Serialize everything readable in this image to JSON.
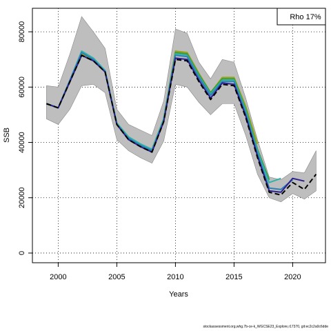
{
  "chart_data": {
    "type": "line",
    "title": "",
    "xlabel": "Years",
    "ylabel": "SSB",
    "xlim": [
      1997.8,
      2022.8
    ],
    "ylim": [
      -3500,
      88500
    ],
    "x_ticks": [
      2000,
      2005,
      2010,
      2015,
      2020
    ],
    "y_ticks": [
      0,
      20000,
      40000,
      60000,
      80000
    ],
    "grid": "dotted",
    "legend": {
      "position": "top-right",
      "text": "Rho 17%"
    },
    "confidence_band": {
      "x": [
        1999,
        2000,
        2001,
        2002,
        2003,
        2004,
        2005,
        2006,
        2007,
        2008,
        2009,
        2010,
        2011,
        2012,
        2013,
        2014,
        2015,
        2016,
        2017,
        2018,
        2019,
        2020,
        2021,
        2022
      ],
      "lower": [
        48500,
        46500,
        52000,
        60500,
        61000,
        58000,
        41000,
        37000,
        34500,
        32500,
        40500,
        61000,
        60000,
        54500,
        50000,
        54000,
        54000,
        42500,
        28500,
        20000,
        18500,
        21500,
        19500,
        22500
      ],
      "upper": [
        60500,
        60000,
        72000,
        85500,
        80000,
        74000,
        52000,
        46500,
        44500,
        42500,
        55000,
        81000,
        79500,
        69000,
        63000,
        70000,
        69000,
        56000,
        41000,
        27500,
        26500,
        29500,
        29000,
        37000
      ]
    },
    "series": [
      {
        "color": "#000000",
        "dashed": true,
        "x": [
          1999,
          2000,
          2001,
          2002,
          2003,
          2004,
          2005,
          2006,
          2007,
          2008,
          2009,
          2010,
          2011,
          2012,
          2013,
          2014,
          2015,
          2016,
          2017,
          2018,
          2019,
          2020,
          2021,
          2022
        ],
        "values": [
          54000,
          52500,
          62000,
          71500,
          69500,
          65500,
          46500,
          41000,
          38500,
          36500,
          47500,
          70000,
          69500,
          62000,
          55500,
          61000,
          60500,
          49000,
          34500,
          22000,
          21000,
          25500,
          23000,
          28500
        ]
      },
      {
        "color": "#2c1f8e",
        "dashed": false,
        "x": [
          1999,
          2000,
          2001,
          2002,
          2003,
          2004,
          2005,
          2006,
          2007,
          2008,
          2009,
          2010,
          2011,
          2012,
          2013,
          2014,
          2015,
          2016,
          2017,
          2018,
          2019,
          2020,
          2021
        ],
        "values": [
          54000,
          52500,
          62000,
          71500,
          69500,
          65500,
          46500,
          41000,
          38500,
          36500,
          47500,
          70500,
          70000,
          62500,
          56000,
          61500,
          61000,
          49500,
          35000,
          22500,
          22000,
          27000,
          26000
        ]
      },
      {
        "color": "#2f7fb8",
        "dashed": false,
        "x": [
          1999,
          2000,
          2001,
          2002,
          2003,
          2004,
          2005,
          2006,
          2007,
          2008,
          2009,
          2010,
          2011,
          2012,
          2013,
          2014,
          2015,
          2016,
          2017,
          2018,
          2019,
          2020
        ],
        "values": [
          54000,
          52500,
          62500,
          72500,
          70000,
          65500,
          46500,
          41500,
          39000,
          37000,
          48000,
          71500,
          71000,
          63500,
          57000,
          62000,
          62000,
          50500,
          36000,
          23500,
          23000,
          26500
        ]
      },
      {
        "color": "#2fb3a8",
        "dashed": false,
        "x": [
          1999,
          2000,
          2001,
          2002,
          2003,
          2004,
          2005,
          2006,
          2007,
          2008,
          2009,
          2010,
          2011,
          2012,
          2013,
          2014,
          2015,
          2016,
          2017,
          2018,
          2019
        ],
        "values": [
          54000,
          52500,
          62500,
          73000,
          70500,
          66000,
          47000,
          42000,
          39500,
          37500,
          48500,
          72000,
          71500,
          64000,
          57500,
          62500,
          62500,
          51500,
          37000,
          25500,
          27000
        ]
      },
      {
        "color": "#3a9a3a",
        "dashed": false,
        "x": [
          1999,
          2000,
          2001,
          2002,
          2003,
          2004,
          2005,
          2006,
          2007,
          2008,
          2009,
          2010,
          2011,
          2012,
          2013,
          2014,
          2015,
          2016,
          2017,
          2018
        ],
        "values": [
          54000,
          52500,
          62000,
          71500,
          69500,
          65500,
          46500,
          41500,
          39000,
          37500,
          48500,
          72500,
          72000,
          64500,
          58000,
          63000,
          63000,
          52000,
          37500,
          26500
        ]
      },
      {
        "color": "#9aa51a",
        "dashed": false,
        "x": [
          1999,
          2000,
          2001,
          2002,
          2003,
          2004,
          2005,
          2006,
          2007,
          2008,
          2009,
          2010,
          2011,
          2012,
          2013,
          2014,
          2015,
          2016,
          2017
        ],
        "values": [
          54000,
          52500,
          62000,
          72000,
          70000,
          65500,
          47000,
          42000,
          39000,
          37500,
          48500,
          73000,
          72500,
          65000,
          58000,
          63500,
          63500,
          53000,
          39500
        ]
      }
    ]
  },
  "footer": "stockassessment.org,whg.7b-ce-k_WGCSE23_Explore,r17370, git:ec2c2a0c6dde"
}
